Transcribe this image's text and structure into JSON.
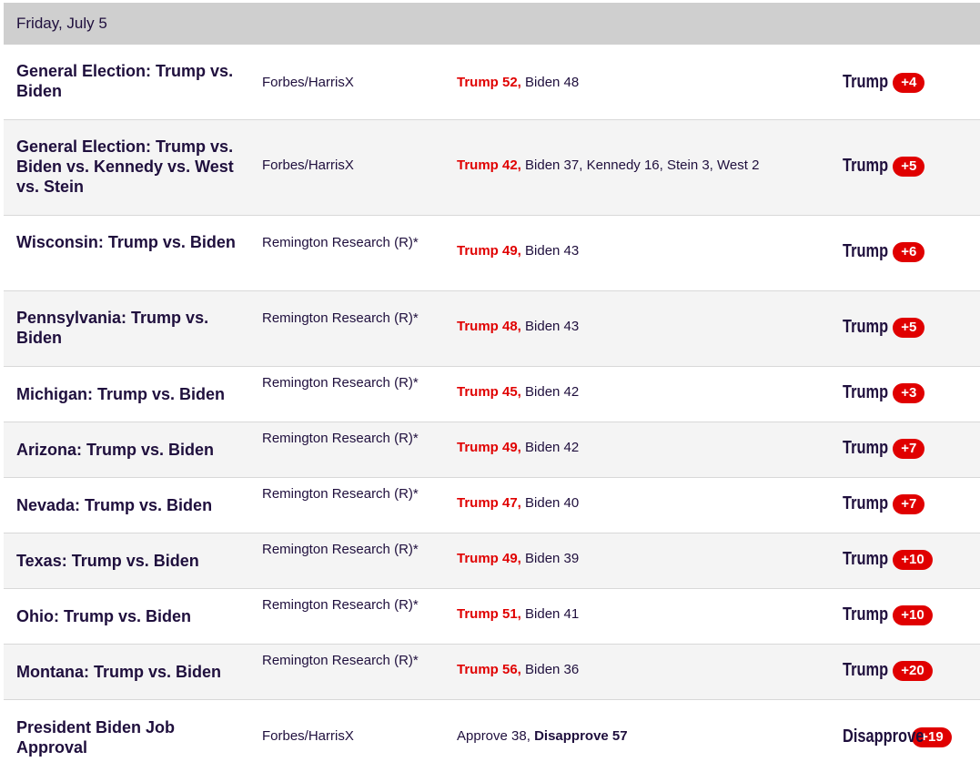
{
  "date_header": "Friday, July 5",
  "rows": [
    {
      "race": "General Election: Trump vs. Biden",
      "poll": "Forbes/HarrisX",
      "lead": "Trump 52,",
      "rest": " Biden 48",
      "spread_name": "Trump",
      "spread_value": "+4"
    },
    {
      "race": "General Election: Trump vs. Biden vs. Kennedy vs. West vs. Stein",
      "poll": "Forbes/HarrisX",
      "lead": "Trump 42,",
      "rest": " Biden 37, Kennedy 16, Stein 3, West 2",
      "spread_name": "Trump",
      "spread_value": "+5"
    },
    {
      "race": "Wisconsin: Trump vs. Biden",
      "poll": "Remington Research (R)*",
      "lead": "Trump 49,",
      "rest": " Biden 43",
      "spread_name": "Trump",
      "spread_value": "+6"
    },
    {
      "race": "Pennsylvania: Trump vs. Biden",
      "poll": "Remington Research (R)*",
      "lead": "Trump 48,",
      "rest": " Biden 43",
      "spread_name": "Trump",
      "spread_value": "+5"
    },
    {
      "race": "Michigan: Trump vs. Biden",
      "poll": "Remington Research (R)*",
      "lead": "Trump 45,",
      "rest": " Biden 42",
      "spread_name": "Trump",
      "spread_value": "+3"
    },
    {
      "race": "Arizona: Trump vs. Biden",
      "poll": "Remington Research (R)*",
      "lead": "Trump 49,",
      "rest": " Biden 42",
      "spread_name": "Trump",
      "spread_value": "+7"
    },
    {
      "race": "Nevada: Trump vs. Biden",
      "poll": "Remington Research (R)*",
      "lead": "Trump 47,",
      "rest": " Biden 40",
      "spread_name": "Trump",
      "spread_value": "+7"
    },
    {
      "race": "Texas: Trump vs. Biden",
      "poll": "Remington Research (R)*",
      "lead": "Trump 49,",
      "rest": " Biden 39",
      "spread_name": "Trump",
      "spread_value": "+10"
    },
    {
      "race": "Ohio: Trump vs. Biden",
      "poll": "Remington Research (R)*",
      "lead": "Trump 51,",
      "rest": " Biden 41",
      "spread_name": "Trump",
      "spread_value": "+10"
    },
    {
      "race": "Montana: Trump vs. Biden",
      "poll": "Remington Research (R)*",
      "lead": "Trump 56,",
      "rest": " Biden 36",
      "spread_name": "Trump",
      "spread_value": "+20"
    },
    {
      "race": "President Biden Job Approval",
      "poll": "Forbes/HarrisX",
      "pre": "Approve 38, ",
      "lead_dark": "Disapprove 57",
      "spread_name": "Disapprove",
      "spread_value": "+19"
    }
  ],
  "colors": {
    "lead": "#e00000",
    "text": "#1f0f3d",
    "header_bg": "#cfcfcf",
    "alt_row": "#f4f4f4"
  }
}
